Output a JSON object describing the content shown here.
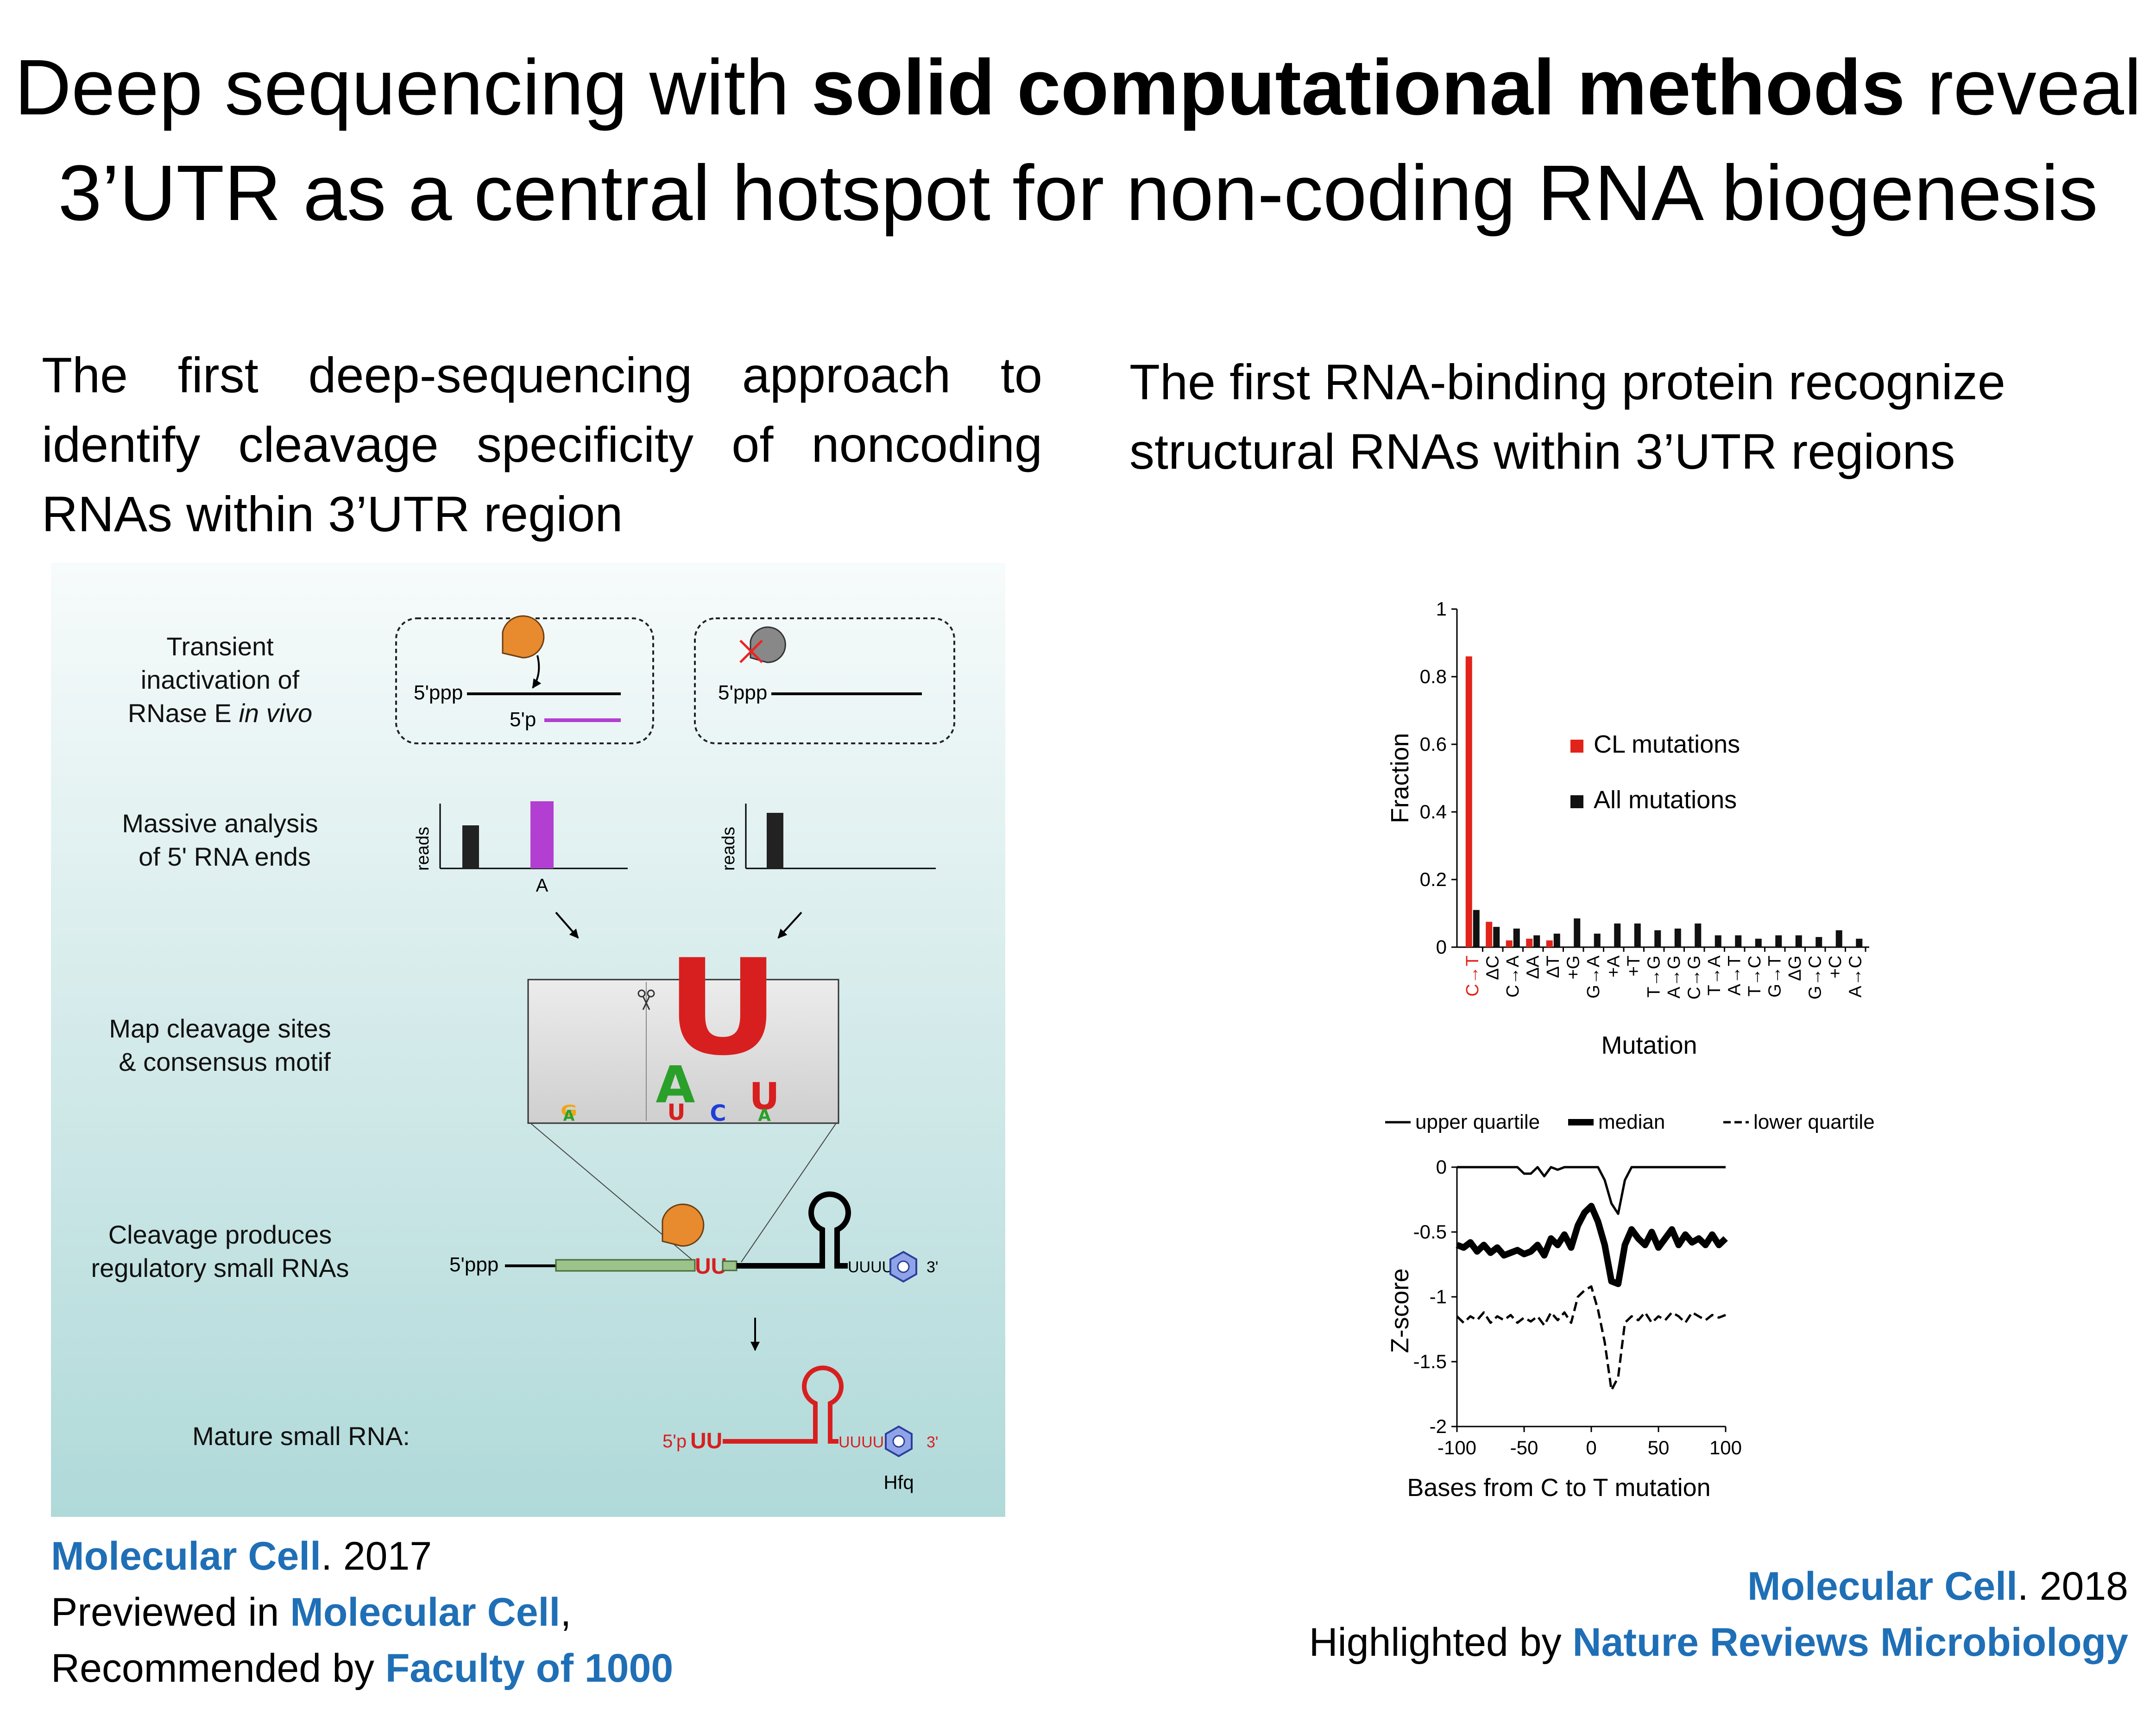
{
  "title": {
    "line1_pre": "Deep sequencing with ",
    "line1_bold": "solid computational methods",
    "line1_post": " reveal",
    "line2": "3’UTR as a central hotspot for non-coding RNA biogenesis"
  },
  "left": {
    "subtitle": "The first deep-sequencing approach to identify cleavage specificity of noncoding RNAs within 3’UTR region",
    "figure": {
      "step1_line1": "Transient",
      "step1_line2": "inactivation of",
      "step1_line3_pre": "RNase E ",
      "step1_line3_italic": "in vivo",
      "step2_line1": "Massive analysis",
      "step2_line2": "of 5' RNA ends",
      "step3_line1": "Map cleavage sites",
      "step3_line2": "& consensus motif",
      "step4_line1": "Cleavage produces",
      "step4_line2": "regulatory small RNAs",
      "mature_label": "Mature small RNA:",
      "label_5ppp": "5'ppp",
      "label_5p": "5'p",
      "reads_label": "reads",
      "site_label": "A",
      "uu": "UU",
      "tail": "UUUUUU",
      "three_prime": "3'",
      "hfq": "Hfq",
      "motif_letters": [
        "G",
        "A",
        "A",
        "U",
        "U",
        "C",
        "U",
        "A"
      ]
    },
    "citation": {
      "journal": "Molecular Cell",
      "year": ". 2017",
      "preview_pre": "Previewed in ",
      "preview_journal": "Molecular Cell",
      "preview_post": ",",
      "rec_pre": "Recommended by ",
      "rec_source": "Faculty of 1000"
    }
  },
  "right": {
    "subtitle": "The first RNA-binding protein recognize structural RNAs within 3’UTR regions",
    "citation": {
      "journal": "Molecular Cell",
      "year": ". 2018",
      "high_pre": "Highlighted by ",
      "high_source": "Nature Reviews Microbiology"
    }
  },
  "chart_data": [
    {
      "type": "bar",
      "xlabel": "Mutation",
      "ylabel": "Fraction",
      "ylim": [
        0,
        1
      ],
      "yticks": [
        "0",
        "0.2",
        "0.4",
        "0.6",
        "0.8",
        "1"
      ],
      "legend_position": "top-right",
      "categories": [
        "C→T",
        "ΔC",
        "C→A",
        "ΔA",
        "ΔT",
        "+G",
        "G→A",
        "+A",
        "+T",
        "T→G",
        "A→G",
        "C→G",
        "T→A",
        "A→T",
        "T→C",
        "G→T",
        "ΔG",
        "G→C",
        "+C",
        "A→C"
      ],
      "series": [
        {
          "name": "CL mutations",
          "color": "#e2231a",
          "values": [
            0.86,
            0.075,
            0.02,
            0.025,
            0.02,
            0,
            0,
            0,
            0,
            0,
            0,
            0,
            0,
            0,
            0,
            0,
            0,
            0,
            0,
            0
          ]
        },
        {
          "name": "All mutations",
          "color": "#111111",
          "values": [
            0.11,
            0.06,
            0.055,
            0.035,
            0.04,
            0.085,
            0.04,
            0.07,
            0.07,
            0.05,
            0.055,
            0.07,
            0.035,
            0.035,
            0.025,
            0.035,
            0.035,
            0.03,
            0.05,
            0.025
          ]
        }
      ]
    },
    {
      "type": "line",
      "xlabel": "Bases from C to T mutation",
      "ylabel": "Z-score",
      "xlim": [
        -100,
        100
      ],
      "ylim": [
        -2,
        0
      ],
      "xticks": [
        "-100",
        "-50",
        "0",
        "50",
        "100"
      ],
      "yticks": [
        "0",
        "-0.5",
        "-1",
        "-1.5",
        "-2"
      ],
      "legend_position": "top",
      "x": [
        -100,
        -95,
        -90,
        -85,
        -80,
        -75,
        -70,
        -65,
        -60,
        -55,
        -50,
        -45,
        -40,
        -35,
        -30,
        -25,
        -20,
        -15,
        -10,
        -5,
        0,
        5,
        10,
        15,
        20,
        25,
        30,
        35,
        40,
        45,
        50,
        55,
        60,
        65,
        70,
        75,
        80,
        85,
        90,
        95,
        100
      ],
      "series": [
        {
          "name": "upper quartile",
          "style": "solid-thin",
          "values": [
            0,
            0,
            0,
            0,
            0,
            0,
            0,
            0,
            0,
            0,
            -0.05,
            -0.05,
            0,
            -0.07,
            0,
            -0.02,
            0,
            0,
            0,
            0,
            0,
            0,
            -0.1,
            -0.28,
            -0.36,
            -0.1,
            0,
            0,
            0,
            0,
            0,
            0,
            0,
            0,
            0,
            0,
            0,
            0,
            0,
            0,
            0
          ]
        },
        {
          "name": "median",
          "style": "solid-thick",
          "values": [
            -0.6,
            -0.62,
            -0.58,
            -0.65,
            -0.6,
            -0.66,
            -0.62,
            -0.68,
            -0.66,
            -0.64,
            -0.67,
            -0.65,
            -0.6,
            -0.68,
            -0.55,
            -0.6,
            -0.52,
            -0.62,
            -0.45,
            -0.35,
            -0.3,
            -0.42,
            -0.6,
            -0.88,
            -0.9,
            -0.6,
            -0.48,
            -0.55,
            -0.6,
            -0.5,
            -0.62,
            -0.55,
            -0.48,
            -0.6,
            -0.52,
            -0.58,
            -0.55,
            -0.6,
            -0.52,
            -0.6,
            -0.55
          ]
        },
        {
          "name": "lower quartile",
          "style": "dashed",
          "values": [
            -1.15,
            -1.2,
            -1.15,
            -1.18,
            -1.12,
            -1.2,
            -1.15,
            -1.18,
            -1.14,
            -1.2,
            -1.16,
            -1.19,
            -1.15,
            -1.22,
            -1.12,
            -1.18,
            -1.12,
            -1.2,
            -1.0,
            -0.95,
            -0.92,
            -1.1,
            -1.35,
            -1.72,
            -1.62,
            -1.2,
            -1.15,
            -1.18,
            -1.12,
            -1.2,
            -1.15,
            -1.18,
            -1.12,
            -1.15,
            -1.2,
            -1.12,
            -1.15,
            -1.18,
            -1.14,
            -1.16,
            -1.14
          ]
        }
      ]
    }
  ]
}
